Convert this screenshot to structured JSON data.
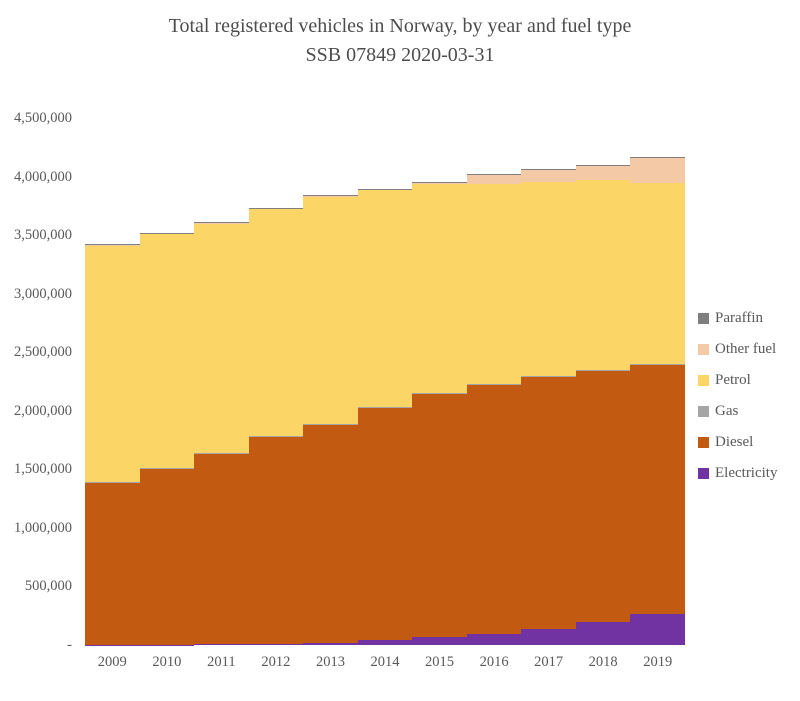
{
  "title": "Total registered vehicles in Norway, by year and fuel type",
  "subtitle": "SSB 07849 2020-03-31",
  "text_colors": {
    "title": "#4d4d4d",
    "axis": "#595959"
  },
  "chart_data": {
    "type": "area",
    "variant": "stacked-step-columns",
    "title": "Total registered vehicles in Norway, by year and fuel type",
    "subtitle": "SSB 07849 2020-03-31",
    "grid": false,
    "legend_position": "right",
    "xlabel": "",
    "ylabel": "",
    "ylim": [
      0,
      4500000
    ],
    "categories": [
      "2009",
      "2010",
      "2011",
      "2012",
      "2013",
      "2014",
      "2015",
      "2016",
      "2017",
      "2018",
      "2019"
    ],
    "series": [
      {
        "name": "Electricity",
        "color": "#7233A2",
        "values": [
          2000,
          2300,
          5400,
          9600,
          19700,
          38700,
          69100,
          97500,
          138500,
          195000,
          260700
        ]
      },
      {
        "name": "Diesel",
        "color": "#C25B11",
        "values": [
          1384000,
          1504000,
          1629000,
          1770000,
          1862000,
          1991000,
          2081000,
          2130000,
          2154000,
          2155000,
          2137000
        ]
      },
      {
        "name": "Gas",
        "color": "#A5A5A5",
        "values": [
          2000,
          2000,
          2000,
          2000,
          2000,
          2000,
          2000,
          2000,
          2000,
          2000,
          2000
        ]
      },
      {
        "name": "Petrol",
        "color": "#FBD566",
        "values": [
          2027000,
          2007000,
          1964000,
          1938000,
          1944000,
          1853000,
          1783000,
          1706000,
          1657000,
          1617000,
          1544000
        ]
      },
      {
        "name": "Other fuel",
        "color": "#F3C9A6",
        "values": [
          5000,
          6000,
          7000,
          8000,
          10000,
          12000,
          15000,
          85000,
          112000,
          130000,
          220000
        ]
      },
      {
        "name": "Paraffin",
        "color": "#7F7F7F",
        "values": [
          1000,
          1000,
          1000,
          1000,
          1000,
          1000,
          1000,
          1000,
          1000,
          1000,
          1000
        ]
      }
    ],
    "legend": [
      "Paraffin",
      "Other fuel",
      "Petrol",
      "Gas",
      "Diesel",
      "Electricity"
    ],
    "yticks": [
      {
        "value": 4500000,
        "label": "4,500,000"
      },
      {
        "value": 4000000,
        "label": "4,000,000"
      },
      {
        "value": 3500000,
        "label": "3,500,000"
      },
      {
        "value": 3000000,
        "label": "3,000,000"
      },
      {
        "value": 2500000,
        "label": "2,500,000"
      },
      {
        "value": 2000000,
        "label": "2,000,000"
      },
      {
        "value": 1500000,
        "label": "1,500,000"
      },
      {
        "value": 1000000,
        "label": "1,000,000"
      },
      {
        "value": 500000,
        "label": "500,000"
      },
      {
        "value": 0,
        "label": "-"
      }
    ]
  }
}
